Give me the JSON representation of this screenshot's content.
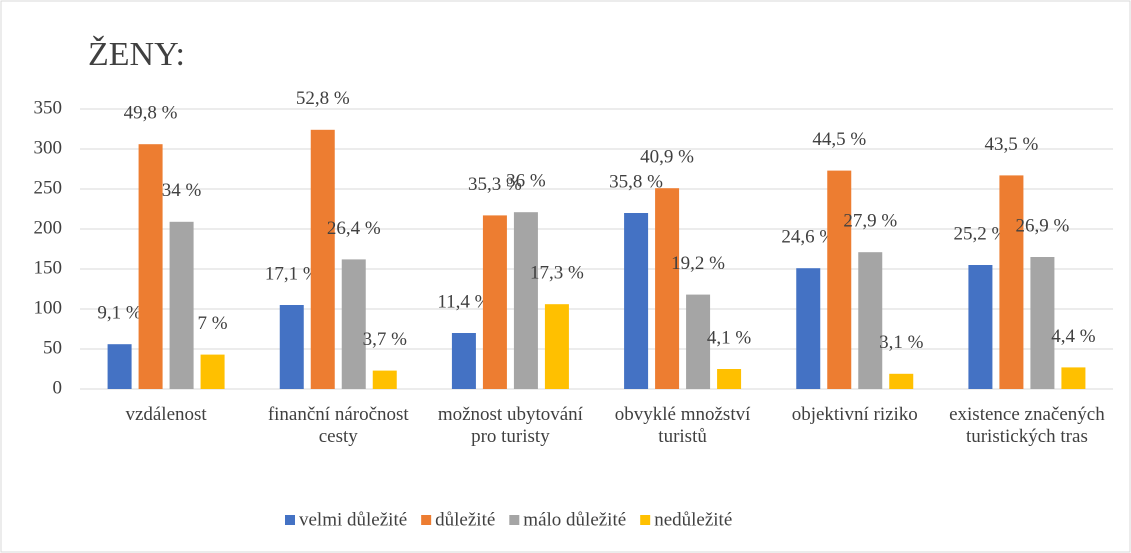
{
  "chart_data": {
    "type": "bar",
    "title": "ŽENY:",
    "categories": [
      "vzdálenost",
      "finanční náročnost cesty",
      "možnost ubytování pro turisty",
      "obvyklé množství turistů",
      "objektivní riziko",
      "existence značených turistických tras"
    ],
    "series": [
      {
        "name": "velmi důležité",
        "color": "#4472c4",
        "values": [
          56,
          105,
          70,
          220,
          151,
          155
        ],
        "value_labels": [
          "9,1 %",
          "17,1 %",
          "11,4 %",
          "35,8 %",
          "24,6 %",
          "25,2 %"
        ]
      },
      {
        "name": "důležité",
        "color": "#ed7d31",
        "values": [
          306,
          324,
          217,
          251,
          273,
          267
        ],
        "value_labels": [
          "49,8 %",
          "52,8 %",
          "35,3 %",
          "40,9 %",
          "44,5 %",
          "43,5 %"
        ]
      },
      {
        "name": "málo důležité",
        "color": "#a5a5a5",
        "values": [
          209,
          162,
          221,
          118,
          171,
          165
        ],
        "value_labels": [
          "34 %",
          "26,4 %",
          "36 %",
          "19,2 %",
          "27,9 %",
          "26,9 %"
        ]
      },
      {
        "name": "nedůležité",
        "color": "#ffc000",
        "values": [
          43,
          23,
          106,
          25,
          19,
          27
        ],
        "value_labels": [
          "7 %",
          "3,7 %",
          "17,3 %",
          "4,1 %",
          "3,1 %",
          "4,4 %"
        ]
      }
    ],
    "ylim": [
      0,
      350
    ],
    "yticks": [
      0,
      50,
      100,
      150,
      200,
      250,
      300,
      350
    ],
    "grid": true,
    "legend": "bottom"
  }
}
